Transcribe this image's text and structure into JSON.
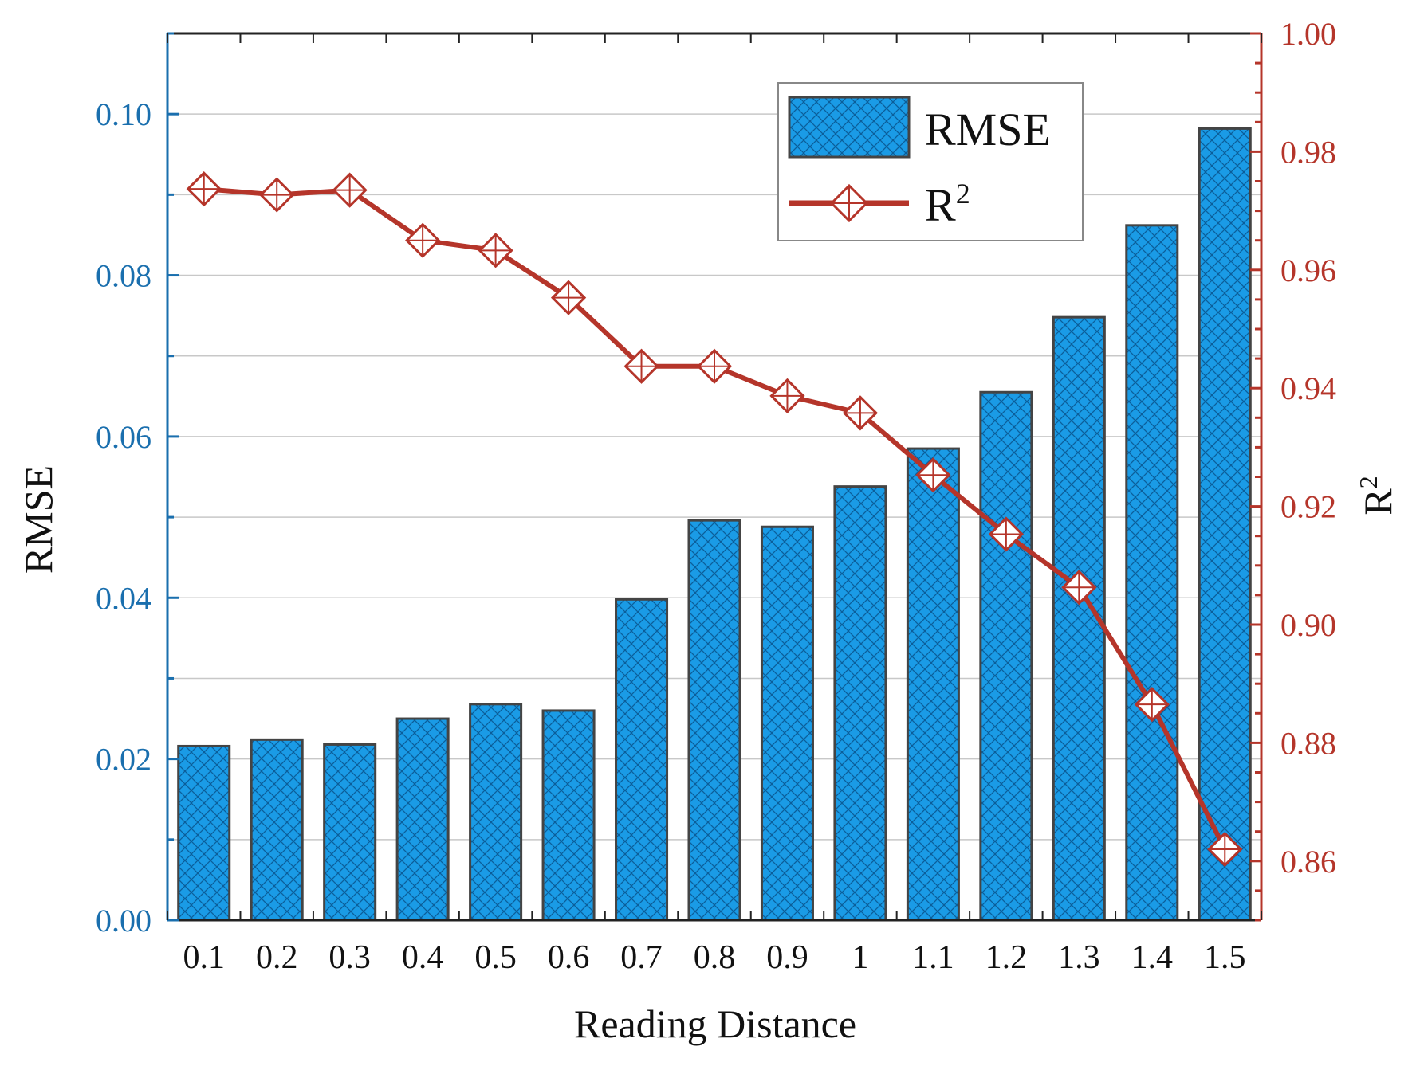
{
  "chart_data": {
    "type": "bar+line",
    "title": "",
    "xlabel": "Reading Distance",
    "categories": [
      "0.1",
      "0.2",
      "0.3",
      "0.4",
      "0.5",
      "0.6",
      "0.7",
      "0.8",
      "0.9",
      "1",
      "1.1",
      "1.2",
      "1.3",
      "1.4",
      "1.5"
    ],
    "left_axis": {
      "label": "RMSE",
      "ylim": [
        0,
        0.11
      ],
      "ticks": [
        "0.00",
        "0.02",
        "0.04",
        "0.06",
        "0.08",
        "0.10"
      ],
      "tick_values": [
        0,
        0.02,
        0.04,
        0.06,
        0.08,
        0.1
      ],
      "color": "#1a6fae"
    },
    "right_axis": {
      "label_base": "R",
      "label_sup": "2",
      "ylim": [
        0.85,
        1.0
      ],
      "ticks": [
        "0.86",
        "0.88",
        "0.90",
        "0.92",
        "0.94",
        "0.96",
        "0.98",
        "1.00"
      ],
      "tick_values": [
        0.86,
        0.88,
        0.9,
        0.92,
        0.94,
        0.96,
        0.98,
        1.0
      ],
      "color": "#b5352a"
    },
    "series": [
      {
        "name": "RMSE",
        "kind": "bar",
        "axis": "left",
        "color": "#1a9be6",
        "values": [
          0.0216,
          0.0224,
          0.0218,
          0.025,
          0.0268,
          0.026,
          0.0398,
          0.0496,
          0.0488,
          0.0538,
          0.0585,
          0.0655,
          0.0748,
          0.0862,
          0.0982
        ]
      },
      {
        "name": "R",
        "name_sup": "2",
        "kind": "line",
        "axis": "right",
        "color": "#b5352a",
        "values": [
          0.9737,
          0.9727,
          0.9735,
          0.965,
          0.9633,
          0.9553,
          0.9437,
          0.9437,
          0.9387,
          0.9358,
          0.9253,
          0.9153,
          0.9063,
          0.8865,
          0.862
        ]
      }
    ],
    "legend": {
      "position": "top-right",
      "bar_label": "RMSE",
      "line_label_base": "R",
      "line_label_sup": "2"
    },
    "grid": true
  }
}
